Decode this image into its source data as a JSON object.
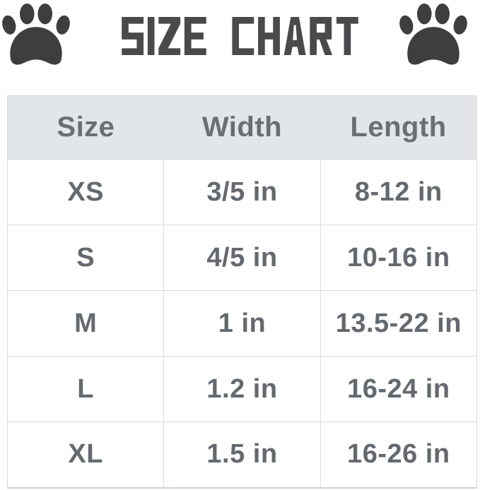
{
  "header": {
    "title": "SIZE CHART",
    "left_icon": "paw-icon",
    "right_icon": "paw-icon"
  },
  "colors": {
    "page_bg": "#ffffff",
    "title_color": "#4a4a4c",
    "paw_color": "#3e3e40",
    "header_bg": "#e3e6e8",
    "border": "#d9dcdd",
    "header_text": "#6a6f76",
    "cell_text": "#64696f"
  },
  "chart_data": {
    "type": "table",
    "title": "SIZE CHART",
    "columns": [
      "Size",
      "Width",
      "Length"
    ],
    "rows": [
      [
        "XS",
        "3/5 in",
        "8-12 in"
      ],
      [
        "S",
        "4/5 in",
        "10-16 in"
      ],
      [
        "M",
        "1 in",
        "13.5-22 in"
      ],
      [
        "L",
        "1.2 in",
        "16-24 in"
      ],
      [
        "XL",
        "1.5 in",
        "16-26 in"
      ]
    ],
    "units": "in",
    "grid": true,
    "header_row_shaded": true
  }
}
